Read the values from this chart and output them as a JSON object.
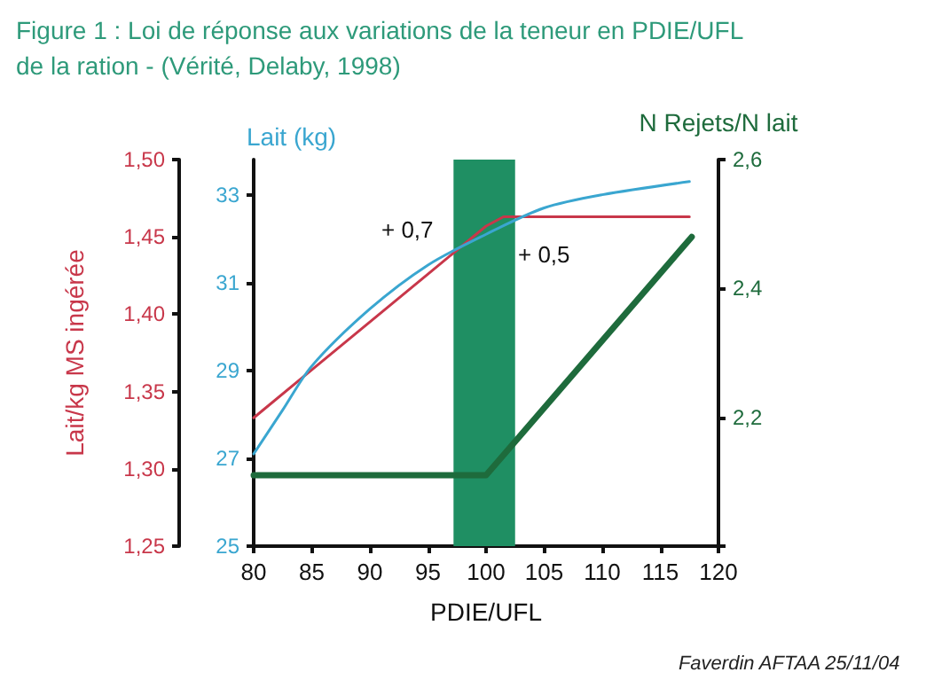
{
  "chart_data": {
    "type": "line",
    "title": "Figure 1 : Loi de réponse aux variations de la teneur en PDIE/UFL\nde la ration - (Vérité, Delaby, 1998)",
    "xlabel": "PDIE/UFL",
    "ylabel": "Lait/kg MS ingérée",
    "y2label": "Lait (kg)",
    "y3label": "N Rejets/N lait",
    "xlim": [
      80,
      120
    ],
    "xticks": [
      80,
      85,
      90,
      95,
      100,
      105,
      110,
      115,
      120
    ],
    "ylim": [
      1.25,
      1.5
    ],
    "yticks": [
      {
        "value": 1.25,
        "label": "1,25"
      },
      {
        "value": 1.3,
        "label": "1,30"
      },
      {
        "value": 1.35,
        "label": "1,35"
      },
      {
        "value": 1.4,
        "label": "1,40"
      },
      {
        "value": 1.45,
        "label": "1,45"
      },
      {
        "value": 1.5,
        "label": "1,50"
      }
    ],
    "y2lim": [
      25,
      33.8
    ],
    "y2ticks": [
      25,
      27,
      29,
      31,
      33
    ],
    "y3lim": [
      2.0,
      2.6
    ],
    "y3ticks": [
      {
        "value": 2.0,
        "label": null
      },
      {
        "value": 2.2,
        "label": "2,2"
      },
      {
        "value": 2.4,
        "label": "2,4"
      },
      {
        "value": 2.6,
        "label": "2,6"
      }
    ],
    "series": [
      {
        "color": "#c8374a",
        "x": [
          80,
          85,
          90,
          95,
          100,
          101.5,
          117.5
        ],
        "values": [
          1.333,
          1.364,
          1.395,
          1.426,
          1.457,
          1.463,
          1.463
        ]
      },
      {
        "color": "#3aa6d0",
        "axis": "y2",
        "x": [
          80,
          82.5,
          85,
          90,
          95,
          100,
          105,
          110,
          117.5
        ],
        "values": [
          27.1,
          28.1,
          29.1,
          30.4,
          31.4,
          32.1,
          32.7,
          33.0,
          33.3
        ]
      },
      {
        "color": "#1e6b3c",
        "axis": "y3",
        "x": [
          80,
          100,
          117.7
        ],
        "values": [
          2.11,
          2.11,
          2.48
        ]
      }
    ],
    "bands": [
      {
        "axis": "x",
        "from": 97.2,
        "to": 102.5,
        "color": "#1f8f63"
      }
    ],
    "annotations": [
      "+ 0,7",
      "+ 0,5",
      "Faverdin AFTAA 25/11/04"
    ],
    "grid": false,
    "marker": "none",
    "line_style": "solid"
  }
}
